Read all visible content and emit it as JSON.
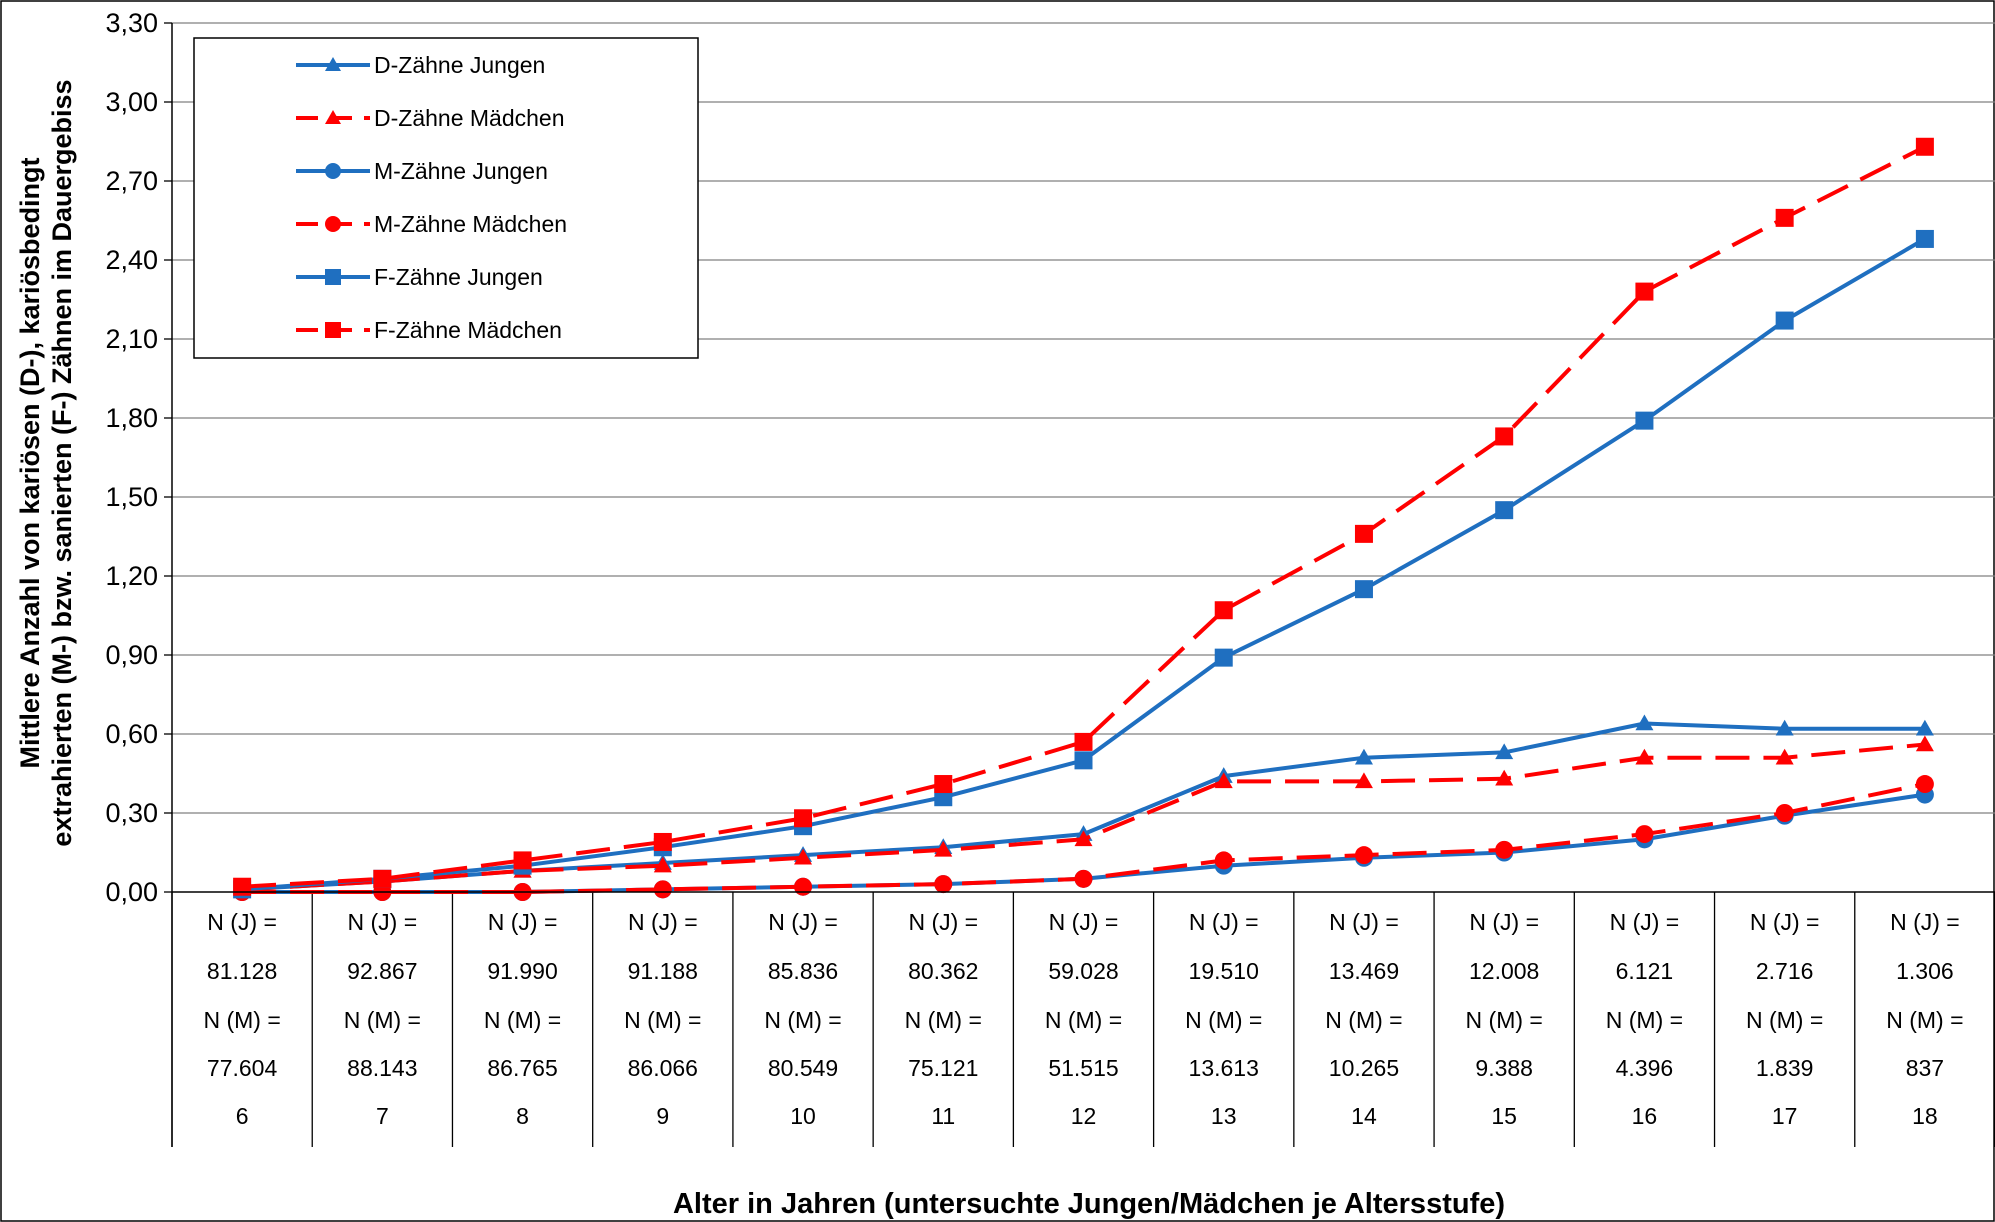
{
  "chart_data": {
    "type": "line",
    "ylabel_line1": "Mittlere Anzahl von kariösen (D-), kariösbedingt",
    "ylabel_line2": "extrahierten (M-) bzw. sanierten (F-) Zähnen im  Dauergebiss",
    "xlabel": "Alter in Jahren (untersuchte Jungen/Mädchen je Altersstufe)",
    "ylim": [
      0,
      3.3
    ],
    "y_ticks": [
      "0,00",
      "0,30",
      "0,60",
      "0,90",
      "1,20",
      "1,50",
      "1,80",
      "2,10",
      "2,40",
      "2,70",
      "3,00",
      "3,30"
    ],
    "grid": "horizontal",
    "legend_position": "top-left",
    "categories": [
      "6",
      "7",
      "8",
      "9",
      "10",
      "11",
      "12",
      "13",
      "14",
      "15",
      "16",
      "17",
      "18"
    ],
    "category_rows": [
      [
        "N (J) =",
        "N (J) =",
        "N (J) =",
        "N (J) =",
        "N (J) =",
        "N (J) =",
        "N (J) =",
        "N (J) =",
        "N (J) =",
        "N (J) =",
        "N (J) =",
        "N (J) =",
        "N (J) ="
      ],
      [
        "81.128",
        "92.867",
        "91.990",
        "91.188",
        "85.836",
        "80.362",
        "59.028",
        "19.510",
        "13.469",
        "12.008",
        "6.121",
        "2.716",
        "1.306"
      ],
      [
        "N (M) =",
        "N (M) =",
        "N (M) =",
        "N (M) =",
        "N (M) =",
        "N (M) =",
        "N (M) =",
        "N (M) =",
        "N (M) =",
        "N (M) =",
        "N (M) =",
        "N (M) =",
        "N (M) ="
      ],
      [
        "77.604",
        "88.143",
        "86.765",
        "86.066",
        "80.549",
        "75.121",
        "51.515",
        "13.613",
        "10.265",
        "9.388",
        "4.396",
        "1.839",
        "837"
      ],
      [
        "6",
        "7",
        "8",
        "9",
        "10",
        "11",
        "12",
        "13",
        "14",
        "15",
        "16",
        "17",
        "18"
      ]
    ],
    "series": [
      {
        "name": "D-Zähne Jungen",
        "color": "#1f6fc0",
        "dash": "solid",
        "marker": "triangle",
        "values": [
          0.01,
          0.04,
          0.08,
          0.11,
          0.14,
          0.17,
          0.22,
          0.44,
          0.51,
          0.53,
          0.64,
          0.62,
          0.62
        ]
      },
      {
        "name": "D-Zähne Mädchen",
        "color": "#ff0000",
        "dash": "dashed",
        "marker": "triangle",
        "values": [
          0.01,
          0.04,
          0.08,
          0.1,
          0.13,
          0.16,
          0.2,
          0.42,
          0.42,
          0.43,
          0.51,
          0.51,
          0.56
        ]
      },
      {
        "name": "M-Zähne Jungen",
        "color": "#1f6fc0",
        "dash": "solid",
        "marker": "circle",
        "values": [
          0.0,
          0.0,
          0.0,
          0.01,
          0.02,
          0.03,
          0.05,
          0.1,
          0.13,
          0.15,
          0.2,
          0.29,
          0.37
        ]
      },
      {
        "name": "M-Zähne Mädchen",
        "color": "#ff0000",
        "dash": "dashed",
        "marker": "circle",
        "values": [
          0.0,
          0.0,
          0.0,
          0.01,
          0.02,
          0.03,
          0.05,
          0.12,
          0.14,
          0.16,
          0.22,
          0.3,
          0.41
        ]
      },
      {
        "name": "F-Zähne Jungen",
        "color": "#1f6fc0",
        "dash": "solid",
        "marker": "square",
        "values": [
          0.01,
          0.05,
          0.1,
          0.17,
          0.25,
          0.36,
          0.5,
          0.89,
          1.15,
          1.45,
          1.79,
          2.17,
          2.48
        ]
      },
      {
        "name": "F-Zähne Mädchen",
        "color": "#ff0000",
        "dash": "dashed",
        "marker": "square",
        "values": [
          0.02,
          0.05,
          0.12,
          0.19,
          0.28,
          0.41,
          0.57,
          1.07,
          1.36,
          1.73,
          2.28,
          2.56,
          2.83
        ]
      }
    ]
  }
}
